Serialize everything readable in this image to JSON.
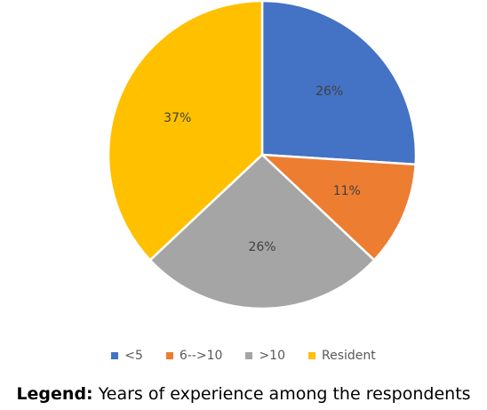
{
  "chart_data": {
    "type": "pie",
    "categories": [
      "<5",
      "6-->10",
      ">10",
      "Resident"
    ],
    "values": [
      26,
      11,
      26,
      37
    ],
    "value_labels": [
      "26%",
      "11%",
      "26%",
      "37%"
    ],
    "colors": [
      "#4472C4",
      "#ED7D31",
      "#A5A5A5",
      "#FFC000"
    ],
    "start_angle_deg": 0,
    "direction": "clockwise",
    "legend_placement": "bottom"
  },
  "caption": {
    "label": "Legend:",
    "text": " Years of experience among the respondents"
  }
}
